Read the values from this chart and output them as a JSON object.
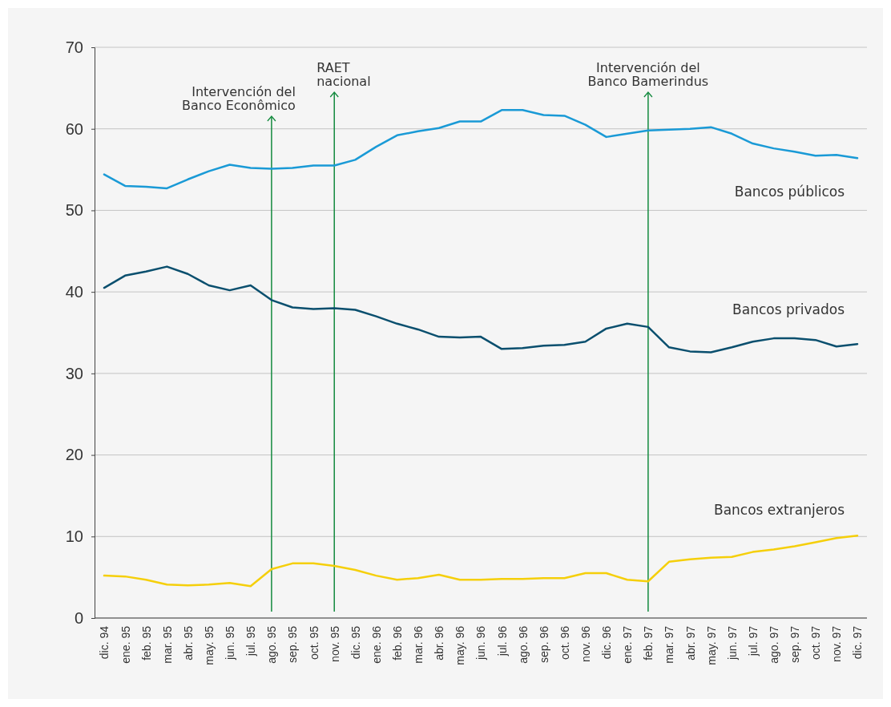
{
  "chart_data": {
    "type": "line",
    "categories": [
      "dic. 94",
      "ene. 95",
      "feb. 95",
      "mar. 95",
      "abr. 95",
      "may. 95",
      "jun. 95",
      "jul. 95",
      "ago. 95",
      "sep. 95",
      "oct. 95",
      "nov. 95",
      "dic. 95",
      "ene. 96",
      "feb. 96",
      "mar. 96",
      "abr. 96",
      "may. 96",
      "jun. 96",
      "jul. 96",
      "ago. 96",
      "sep. 96",
      "oct. 96",
      "nov. 96",
      "dic. 96",
      "ene. 97",
      "feb. 97",
      "mar. 97",
      "abr. 97",
      "may. 97",
      "jun. 97",
      "jul. 97",
      "ago. 97",
      "sep. 97",
      "oct. 97",
      "nov. 97",
      "dic. 97"
    ],
    "series": [
      {
        "name": "Bancos públicos",
        "color": "#1a9ad6",
        "values": [
          54.4,
          53.0,
          52.9,
          52.7,
          53.8,
          54.8,
          55.6,
          55.2,
          55.1,
          55.2,
          55.5,
          55.5,
          56.2,
          57.8,
          59.2,
          59.7,
          60.1,
          60.9,
          60.9,
          62.3,
          62.3,
          61.7,
          61.6,
          60.5,
          59.0,
          59.4,
          59.8,
          59.9,
          60.0,
          60.2,
          59.4,
          58.2,
          57.6,
          57.2,
          56.7,
          56.8,
          56.4
        ]
      },
      {
        "name": "Bancos privados",
        "color": "#0a4f6e",
        "values": [
          40.5,
          42.0,
          42.5,
          43.1,
          42.2,
          40.8,
          40.2,
          40.8,
          39.0,
          38.1,
          37.9,
          38.0,
          37.8,
          37.0,
          36.1,
          35.4,
          34.5,
          34.4,
          34.5,
          33.0,
          33.1,
          33.4,
          33.5,
          33.9,
          35.5,
          36.1,
          35.7,
          33.2,
          32.7,
          32.6,
          33.2,
          33.9,
          34.3,
          34.3,
          34.1,
          33.3,
          33.6
        ]
      },
      {
        "name": "Bancos extranjeros",
        "color": "#f5cf0a",
        "values": [
          5.2,
          5.1,
          4.7,
          4.1,
          4.0,
          4.1,
          4.3,
          3.9,
          6.0,
          6.7,
          6.7,
          6.4,
          5.9,
          5.2,
          4.7,
          4.9,
          5.3,
          4.7,
          4.7,
          4.8,
          4.8,
          4.9,
          4.9,
          5.5,
          5.5,
          4.7,
          4.5,
          6.9,
          7.2,
          7.4,
          7.5,
          8.1,
          8.4,
          8.8,
          9.3,
          9.8,
          10.1
        ]
      }
    ],
    "ylim": [
      0,
      70
    ],
    "yticks": [
      0,
      10,
      20,
      30,
      40,
      50,
      60,
      70
    ],
    "grid": "y",
    "legend": false,
    "marker": "none",
    "line_style": "solid",
    "ref_lines": [
      {
        "axis": "x",
        "value": "ago. 95",
        "label": "Intervención del\nBanco Econômico",
        "color": "#138a3e"
      },
      {
        "axis": "x",
        "value": "nov. 95",
        "label": "RAET\nnacional",
        "color": "#138a3e"
      },
      {
        "axis": "x",
        "value": "feb. 97",
        "label": "Intervención del\nBanco Bamerindus",
        "color": "#138a3e"
      }
    ]
  }
}
